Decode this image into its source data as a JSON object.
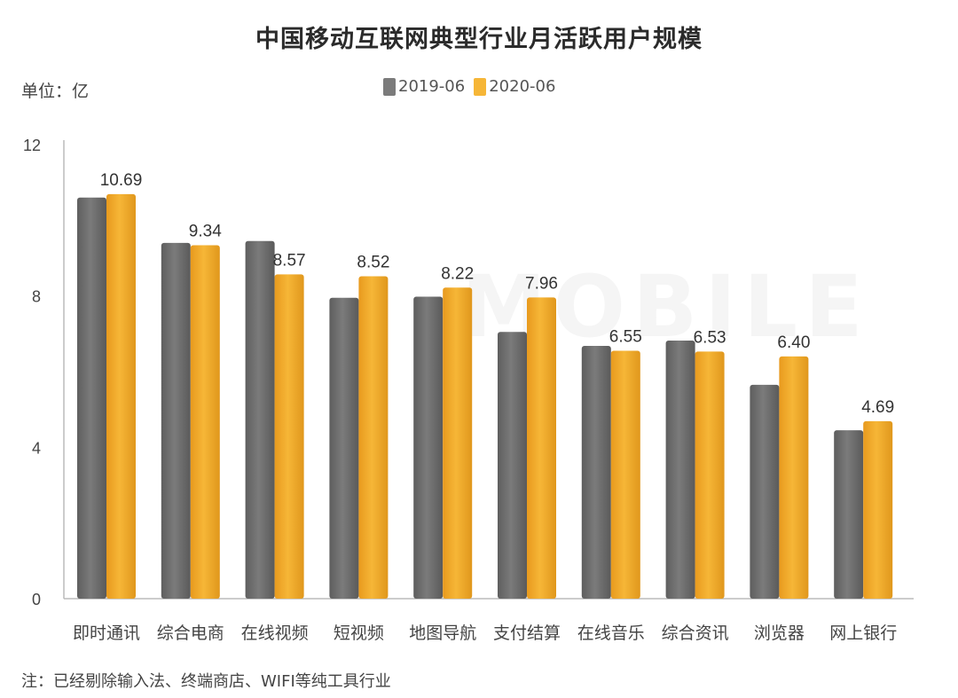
{
  "chart_data": {
    "type": "bar",
    "title": "中国移动互联网典型行业月活跃用户规模",
    "unit_label": "单位：亿",
    "categories": [
      "即时通讯",
      "综合电商",
      "在线视频",
      "短视频",
      "地图导航",
      "支付结算",
      "在线音乐",
      "综合资讯",
      "浏览器",
      "网上银行"
    ],
    "series": [
      {
        "name": "2019-06",
        "color": "#7b7b7b",
        "values": [
          10.6,
          9.4,
          9.45,
          7.95,
          7.98,
          7.05,
          6.68,
          6.82,
          5.65,
          4.45
        ]
      },
      {
        "name": "2020-06",
        "color": "#f6b637",
        "values": [
          10.69,
          9.34,
          8.57,
          8.52,
          8.22,
          7.96,
          6.55,
          6.53,
          6.4,
          4.69
        ]
      }
    ],
    "data_labels": [
      "10.69",
      "9.34",
      "8.57",
      "8.52",
      "8.22",
      "7.96",
      "6.55",
      "6.53",
      "6.40",
      "4.69"
    ],
    "yticks": [
      "0",
      "4",
      "8",
      "12"
    ],
    "ylim": [
      0,
      12
    ],
    "legend_position": "top-center",
    "grid": false,
    "note": "注：已经剔除输入法、终端商店、WIFI等纯工具行业"
  }
}
